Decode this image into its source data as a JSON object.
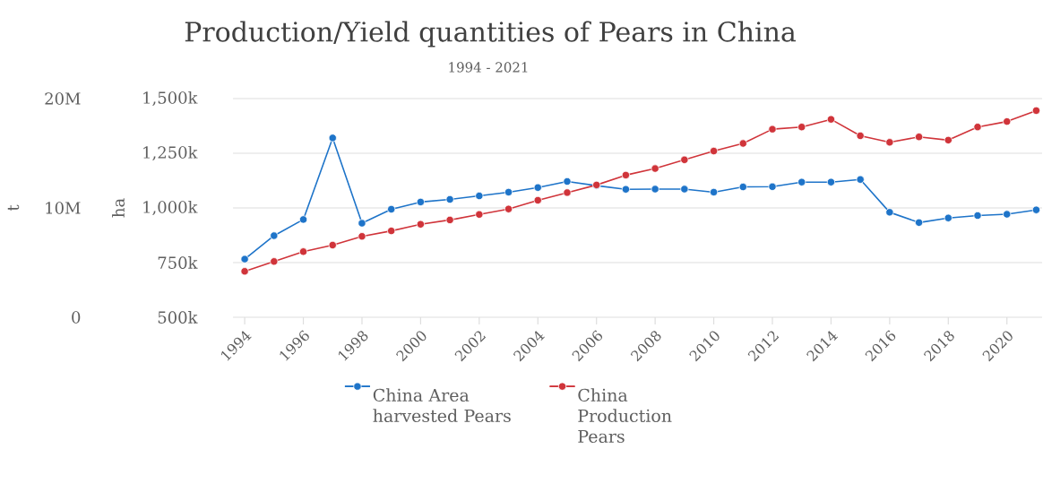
{
  "chart_data": {
    "type": "line",
    "title": "Production/Yield quantities of Pears in China",
    "subtitle": "1994 - 2021",
    "ylabel": "ha",
    "y2label": "t",
    "x": [
      1994,
      1995,
      1996,
      1997,
      1998,
      1999,
      2000,
      2001,
      2002,
      2003,
      2004,
      2005,
      2006,
      2007,
      2008,
      2009,
      2010,
      2011,
      2012,
      2013,
      2014,
      2015,
      2016,
      2017,
      2018,
      2019,
      2020,
      2021
    ],
    "series": [
      {
        "name": "China Area harvested Pears",
        "color": "#1e74c9",
        "values": [
          766000,
          873000,
          947000,
          1320000,
          930000,
          994000,
          1027000,
          1039000,
          1055000,
          1072000,
          1093000,
          1121000,
          1102000,
          1085000,
          1086000,
          1086000,
          1072000,
          1096000,
          1097000,
          1118000,
          1118000,
          1130000,
          980000,
          933000,
          954000,
          965000,
          971000,
          991000
        ]
      },
      {
        "name": "China Production Pears",
        "color": "#d0343a",
        "axis": "y2",
        "values": [
          4200000,
          5100000,
          6000000,
          6600000,
          7400000,
          7900000,
          8500000,
          8900000,
          9400000,
          9900000,
          10700000,
          11400000,
          12100000,
          13000000,
          13600000,
          14400000,
          15200000,
          15900000,
          17200000,
          17400000,
          18100000,
          16600000,
          16000000,
          16500000,
          16200000,
          17400000,
          17900000,
          18900000
        ]
      }
    ],
    "xlim": [
      1993.6,
      2021.2
    ],
    "xticks": [
      1994,
      1996,
      1998,
      2000,
      2002,
      2004,
      2006,
      2008,
      2010,
      2012,
      2014,
      2016,
      2018,
      2020
    ],
    "ylim": [
      500000,
      1500000
    ],
    "yticks": [
      {
        "value": 500000,
        "label": "500k"
      },
      {
        "value": 750000,
        "label": "750k"
      },
      {
        "value": 1000000,
        "label": "1,000k"
      },
      {
        "value": 1250000,
        "label": "1,250k"
      },
      {
        "value": 1500000,
        "label": "1,500k"
      }
    ],
    "y2lim": [
      0,
      20000000
    ],
    "y2ticks": [
      0,
      {
        "value": 10000000,
        "label": "10M"
      },
      {
        "value": 20000000,
        "label": "20M"
      }
    ],
    "grid": "y",
    "legend": "bottom",
    "marker": "circle",
    "line_style": "solid"
  }
}
